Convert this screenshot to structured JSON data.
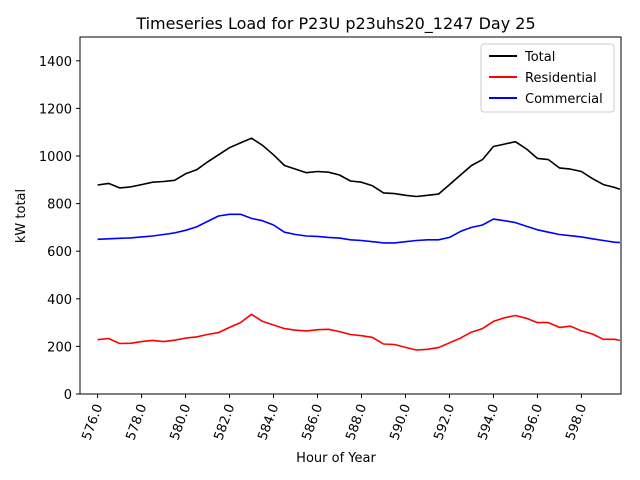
{
  "chart_data": {
    "type": "line",
    "title": "Timeseries Load for P23U p23uhs20_1247  Day 25",
    "xlabel": "Hour of Year",
    "ylabel": "kW total",
    "xlim": [
      575.2,
      599.8
    ],
    "ylim": [
      0,
      1500
    ],
    "xticks": [
      576,
      578,
      580,
      582,
      584,
      586,
      588,
      590,
      592,
      594,
      596,
      598
    ],
    "xtick_labels": [
      "576.0",
      "578.0",
      "580.0",
      "582.0",
      "584.0",
      "586.0",
      "588.0",
      "590.0",
      "592.0",
      "594.0",
      "596.0",
      "598.0"
    ],
    "yticks": [
      0,
      200,
      400,
      600,
      800,
      1000,
      1200,
      1400
    ],
    "ytick_labels": [
      "0",
      "200",
      "400",
      "600",
      "800",
      "1000",
      "1200",
      "1400"
    ],
    "legend_position": "top-right",
    "x": [
      576.0,
      576.5,
      577.0,
      577.5,
      578.0,
      578.5,
      579.0,
      579.5,
      580.0,
      580.5,
      581.0,
      581.5,
      582.0,
      582.5,
      583.0,
      583.5,
      584.0,
      584.5,
      585.0,
      585.5,
      586.0,
      586.5,
      587.0,
      587.5,
      588.0,
      588.5,
      589.0,
      589.5,
      590.0,
      590.5,
      591.0,
      591.5,
      592.0,
      592.5,
      593.0,
      593.5,
      594.0,
      594.5,
      595.0,
      595.5,
      596.0,
      596.5,
      597.0,
      597.5,
      598.0,
      598.5,
      599.0,
      599.5,
      599.75
    ],
    "series": [
      {
        "name": "Total",
        "color": "#000000",
        "values": [
          878,
          885,
          866,
          870,
          880,
          890,
          893,
          898,
          925,
          942,
          975,
          1005,
          1035,
          1055,
          1075,
          1045,
          1005,
          960,
          945,
          930,
          935,
          932,
          920,
          895,
          890,
          875,
          845,
          842,
          835,
          830,
          835,
          840,
          880,
          920,
          960,
          985,
          1040,
          1050,
          1060,
          1030,
          990,
          985,
          950,
          945,
          935,
          905,
          880,
          868,
          860
        ]
      },
      {
        "name": "Residential",
        "color": "#ff0000",
        "values": [
          228,
          233,
          212,
          213,
          220,
          225,
          220,
          226,
          235,
          240,
          250,
          258,
          280,
          300,
          335,
          305,
          290,
          275,
          268,
          265,
          270,
          272,
          262,
          250,
          245,
          238,
          210,
          208,
          196,
          185,
          188,
          195,
          215,
          235,
          260,
          275,
          305,
          320,
          330,
          318,
          300,
          300,
          280,
          285,
          265,
          252,
          230,
          230,
          225
        ]
      },
      {
        "name": "Commercial",
        "color": "#0000ff",
        "values": [
          650,
          652,
          654,
          656,
          660,
          664,
          670,
          677,
          688,
          702,
          725,
          748,
          755,
          755,
          738,
          728,
          710,
          680,
          670,
          664,
          662,
          658,
          655,
          648,
          645,
          640,
          635,
          635,
          640,
          645,
          648,
          648,
          658,
          683,
          700,
          710,
          735,
          728,
          720,
          705,
          690,
          680,
          670,
          665,
          660,
          652,
          645,
          638,
          636
        ]
      }
    ]
  }
}
